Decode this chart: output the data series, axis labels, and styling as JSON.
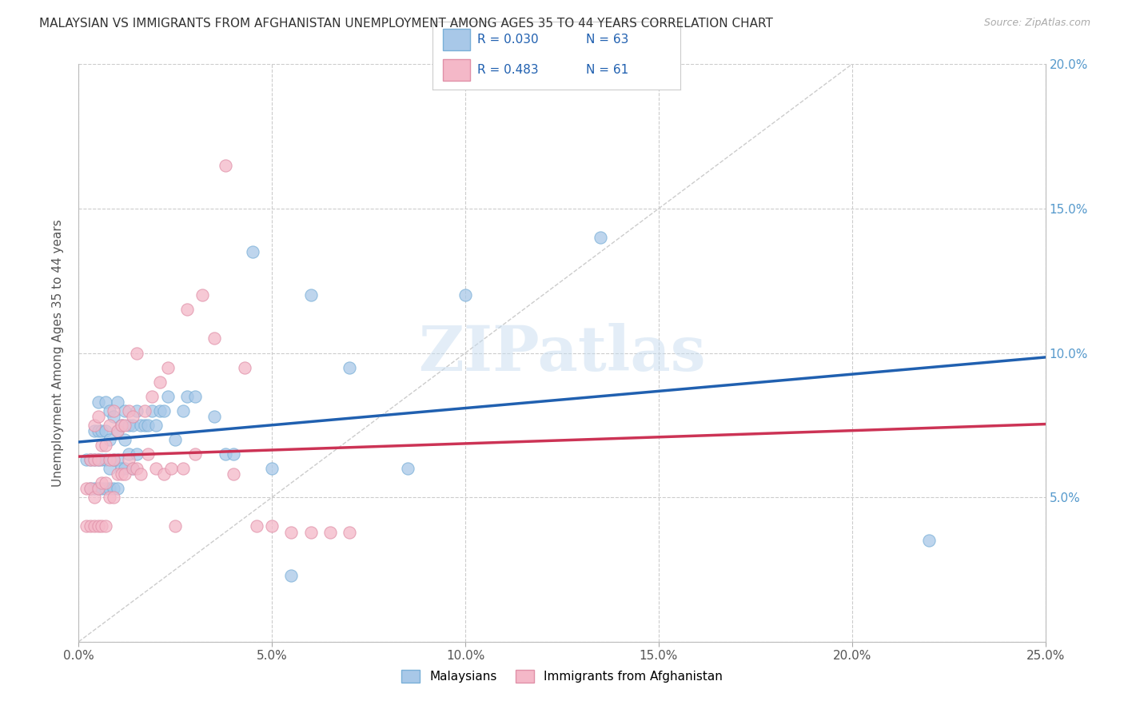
{
  "title": "MALAYSIAN VS IMMIGRANTS FROM AFGHANISTAN UNEMPLOYMENT AMONG AGES 35 TO 44 YEARS CORRELATION CHART",
  "source": "Source: ZipAtlas.com",
  "ylabel": "Unemployment Among Ages 35 to 44 years",
  "xlim": [
    0.0,
    0.25
  ],
  "ylim": [
    0.0,
    0.2
  ],
  "xticks": [
    0.0,
    0.05,
    0.1,
    0.15,
    0.2,
    0.25
  ],
  "yticks": [
    0.0,
    0.05,
    0.1,
    0.15,
    0.2
  ],
  "xticklabels": [
    "0.0%",
    "5.0%",
    "10.0%",
    "15.0%",
    "20.0%",
    "25.0%"
  ],
  "yticklabels_right": [
    "",
    "5.0%",
    "10.0%",
    "15.0%",
    "20.0%"
  ],
  "legend_r1": "R = 0.030",
  "legend_n1": "N = 63",
  "legend_r2": "R = 0.483",
  "legend_n2": "N = 61",
  "blue_color": "#a8c8e8",
  "pink_color": "#f4b8c8",
  "trendline_blue": "#2060b0",
  "trendline_pink": "#cc3355",
  "diagonal_color": "#cccccc",
  "blue_scatter_x": [
    0.002,
    0.003,
    0.003,
    0.004,
    0.004,
    0.004,
    0.005,
    0.005,
    0.005,
    0.005,
    0.006,
    0.006,
    0.006,
    0.007,
    0.007,
    0.007,
    0.007,
    0.008,
    0.008,
    0.008,
    0.008,
    0.009,
    0.009,
    0.009,
    0.01,
    0.01,
    0.01,
    0.01,
    0.011,
    0.011,
    0.012,
    0.012,
    0.012,
    0.013,
    0.013,
    0.014,
    0.014,
    0.015,
    0.015,
    0.016,
    0.017,
    0.018,
    0.019,
    0.02,
    0.021,
    0.022,
    0.023,
    0.025,
    0.027,
    0.028,
    0.03,
    0.035,
    0.038,
    0.04,
    0.045,
    0.05,
    0.055,
    0.06,
    0.07,
    0.085,
    0.1,
    0.135,
    0.22
  ],
  "blue_scatter_y": [
    0.063,
    0.053,
    0.063,
    0.053,
    0.063,
    0.073,
    0.053,
    0.063,
    0.073,
    0.083,
    0.053,
    0.063,
    0.073,
    0.053,
    0.063,
    0.073,
    0.083,
    0.053,
    0.06,
    0.07,
    0.08,
    0.053,
    0.063,
    0.078,
    0.053,
    0.063,
    0.073,
    0.083,
    0.06,
    0.075,
    0.06,
    0.07,
    0.08,
    0.065,
    0.075,
    0.06,
    0.075,
    0.065,
    0.08,
    0.075,
    0.075,
    0.075,
    0.08,
    0.075,
    0.08,
    0.08,
    0.085,
    0.07,
    0.08,
    0.085,
    0.085,
    0.078,
    0.065,
    0.065,
    0.135,
    0.06,
    0.023,
    0.12,
    0.095,
    0.06,
    0.12,
    0.14,
    0.035
  ],
  "pink_scatter_x": [
    0.002,
    0.002,
    0.003,
    0.003,
    0.003,
    0.004,
    0.004,
    0.004,
    0.004,
    0.005,
    0.005,
    0.005,
    0.005,
    0.006,
    0.006,
    0.006,
    0.007,
    0.007,
    0.007,
    0.008,
    0.008,
    0.008,
    0.009,
    0.009,
    0.009,
    0.01,
    0.01,
    0.011,
    0.011,
    0.012,
    0.012,
    0.013,
    0.013,
    0.014,
    0.014,
    0.015,
    0.015,
    0.016,
    0.017,
    0.018,
    0.019,
    0.02,
    0.021,
    0.022,
    0.023,
    0.024,
    0.025,
    0.027,
    0.028,
    0.03,
    0.032,
    0.035,
    0.038,
    0.04,
    0.043,
    0.046,
    0.05,
    0.055,
    0.06,
    0.065,
    0.07
  ],
  "pink_scatter_y": [
    0.04,
    0.053,
    0.04,
    0.053,
    0.063,
    0.04,
    0.05,
    0.063,
    0.075,
    0.04,
    0.053,
    0.063,
    0.078,
    0.04,
    0.055,
    0.068,
    0.04,
    0.055,
    0.068,
    0.05,
    0.063,
    0.075,
    0.05,
    0.063,
    0.08,
    0.058,
    0.073,
    0.058,
    0.075,
    0.058,
    0.075,
    0.063,
    0.08,
    0.06,
    0.078,
    0.06,
    0.1,
    0.058,
    0.08,
    0.065,
    0.085,
    0.06,
    0.09,
    0.058,
    0.095,
    0.06,
    0.04,
    0.06,
    0.115,
    0.065,
    0.12,
    0.105,
    0.165,
    0.058,
    0.095,
    0.04,
    0.04,
    0.038,
    0.038,
    0.038,
    0.038
  ],
  "watermark": "ZIPatlas",
  "background_color": "#ffffff"
}
